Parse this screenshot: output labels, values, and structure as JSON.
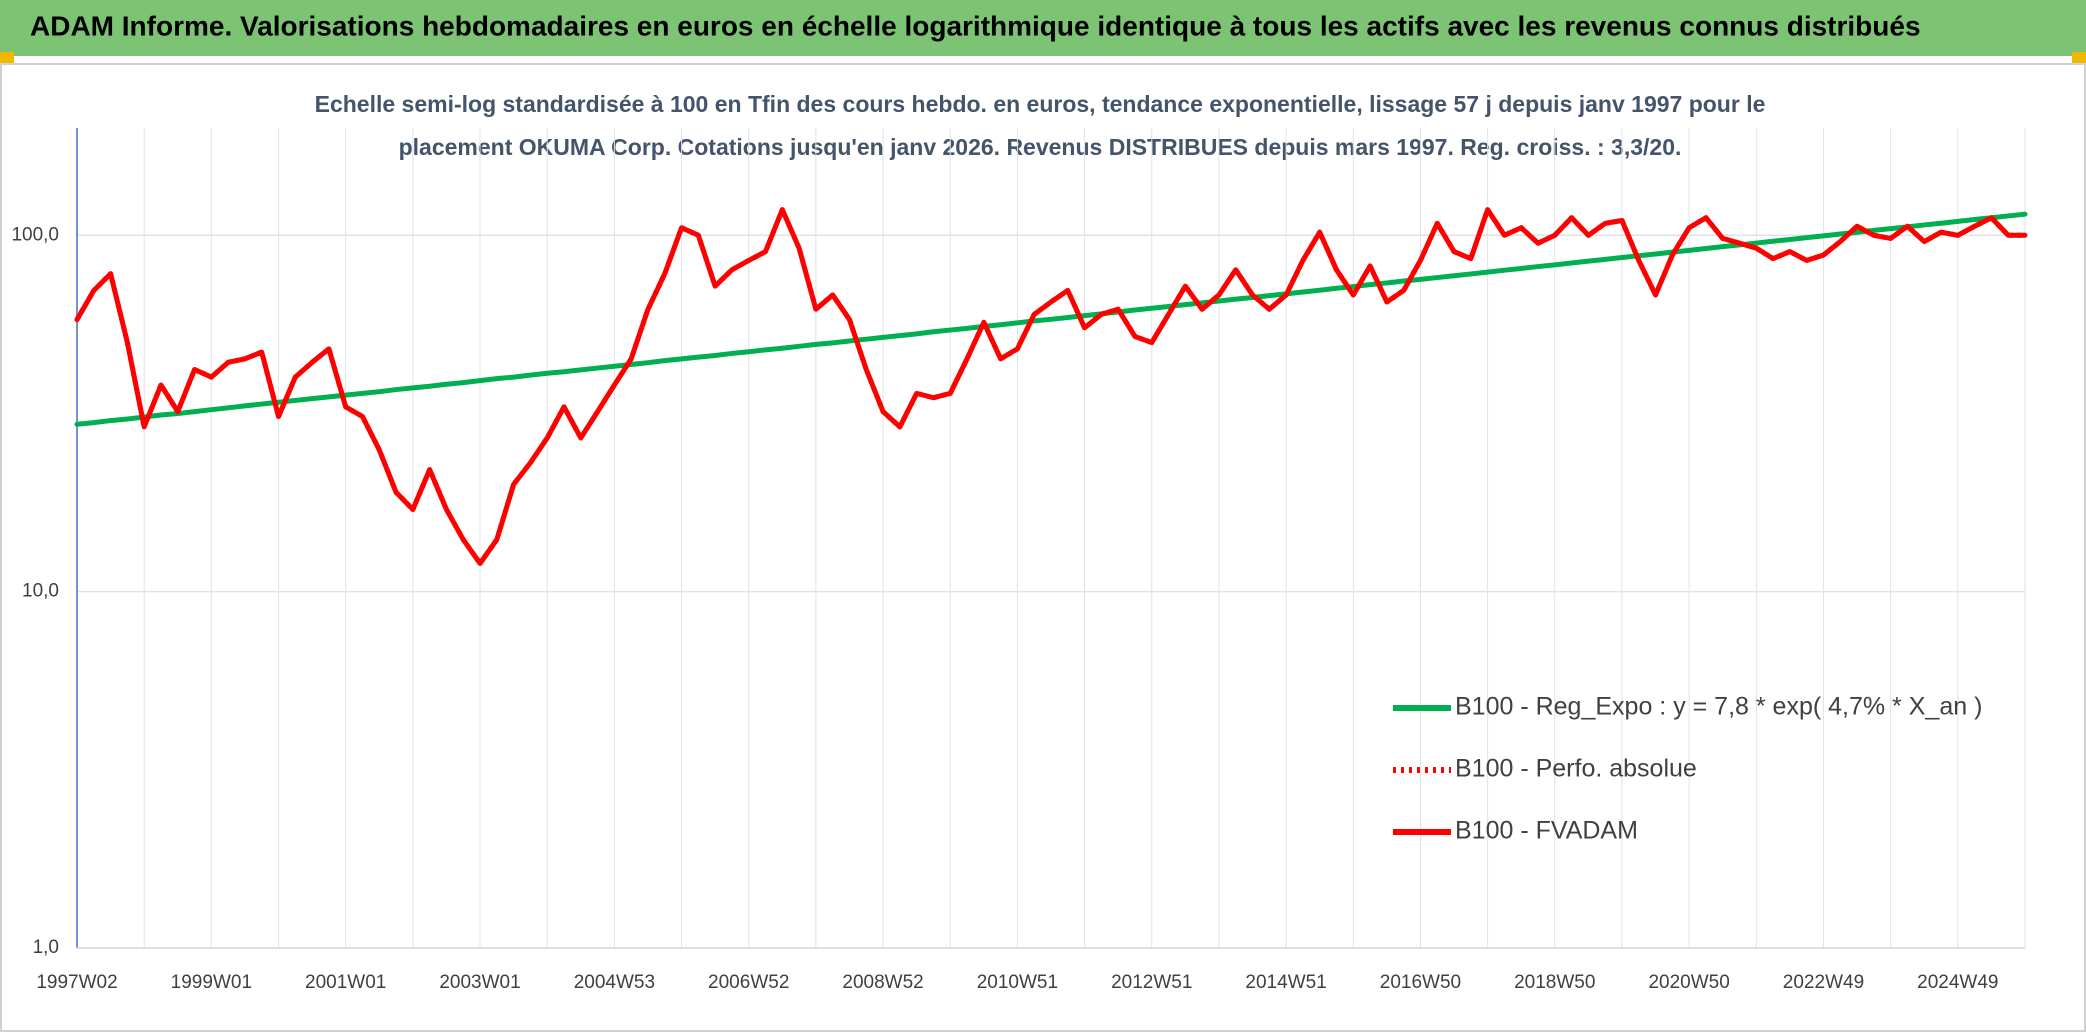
{
  "chart_data": {
    "type": "line",
    "title": "ADAM Informe. Valorisations hebdomadaires en euros en échelle logarithmique identique à tous les actifs avec les revenus connus distribués",
    "subtitle": [
      "Echelle semi-log standardisée à 100 en Tfin des cours hebdo. en euros, tendance exponentielle, lissage 57 j depuis janv 1997 pour le",
      "placement OKUMA Corp. Cotations jusqu'en janv 2026. Revenus DISTRIBUES depuis mars 1997. Reg. croiss. : 3,3/20."
    ],
    "categories": [
      "1997W02",
      null,
      null,
      null,
      null,
      null,
      null,
      null,
      "1999W01",
      null,
      null,
      null,
      null,
      null,
      null,
      null,
      "2001W01",
      null,
      null,
      null,
      null,
      null,
      null,
      null,
      "2003W01",
      null,
      null,
      null,
      null,
      null,
      null,
      null,
      "2004W53",
      null,
      null,
      null,
      null,
      null,
      null,
      null,
      "2006W52",
      null,
      null,
      null,
      null,
      null,
      null,
      null,
      "2008W52",
      null,
      null,
      null,
      null,
      null,
      null,
      null,
      "2010W51",
      null,
      null,
      null,
      null,
      null,
      null,
      null,
      "2012W51",
      null,
      null,
      null,
      null,
      null,
      null,
      null,
      "2014W51",
      null,
      null,
      null,
      null,
      null,
      null,
      null,
      "2016W50",
      null,
      null,
      null,
      null,
      null,
      null,
      null,
      "2018W50",
      null,
      null,
      null,
      null,
      null,
      null,
      null,
      "2020W50",
      null,
      null,
      null,
      null,
      null,
      null,
      null,
      "2022W49",
      null,
      null,
      null,
      null,
      null,
      null,
      null,
      "2024W49",
      null,
      null,
      null,
      null
    ],
    "series": [
      {
        "name": "B100 - Reg_Expo : y = 7,8 * exp( 4,7% *  X_an )",
        "color": "#00b050",
        "line_style": "solid",
        "values": [
          29.5,
          29.8,
          30.2,
          30.5,
          30.9,
          31.3,
          31.6,
          32.0,
          32.4,
          32.8,
          33.2,
          33.6,
          34.0,
          34.4,
          34.8,
          35.2,
          35.6,
          36.0,
          36.4,
          36.9,
          37.3,
          37.7,
          38.2,
          38.6,
          39.1,
          39.6,
          40.0,
          40.5,
          41.0,
          41.4,
          41.9,
          42.4,
          42.9,
          43.4,
          43.9,
          44.5,
          45.0,
          45.5,
          46.0,
          46.6,
          47.1,
          47.7,
          48.2,
          48.8,
          49.4,
          49.9,
          50.5,
          51.1,
          51.7,
          52.3,
          52.9,
          53.6,
          54.2,
          54.8,
          55.5,
          56.1,
          56.8,
          57.5,
          58.1,
          58.8,
          59.5,
          60.2,
          60.9,
          61.7,
          62.4,
          63.1,
          63.9,
          64.6,
          65.4,
          66.2,
          66.9,
          67.7,
          68.5,
          69.3,
          70.1,
          71.0,
          71.8,
          72.7,
          73.5,
          74.4,
          75.2,
          76.1,
          77.0,
          77.9,
          78.8,
          79.8,
          80.7,
          81.7,
          82.6,
          83.6,
          84.6,
          85.6,
          86.6,
          87.6,
          88.6,
          89.7,
          90.7,
          91.8,
          92.9,
          94.0,
          95.1,
          96.2,
          97.3,
          98.5,
          99.6,
          100.8,
          102.0,
          103.2,
          104.4,
          105.6,
          106.9,
          108.1,
          109.4,
          110.7,
          112.0,
          113.3,
          114.6
        ]
      },
      {
        "name": "B100 - Perfo. absolue",
        "color": "#ff0000",
        "line_style": "dotted",
        "values": [
          58,
          70,
          78,
          50,
          29,
          38,
          32,
          42,
          40,
          44,
          45,
          47,
          31,
          40,
          44,
          48,
          33,
          31,
          25,
          19,
          17,
          22,
          17,
          14,
          12,
          14,
          20,
          23,
          27,
          33,
          27,
          32,
          38,
          45,
          62,
          78,
          105,
          100,
          72,
          80,
          85,
          90,
          118,
          92,
          62,
          68,
          58,
          42,
          32,
          29,
          36,
          35,
          36,
          45,
          57,
          45,
          48,
          60,
          65,
          70,
          55,
          60,
          62,
          52,
          50,
          60,
          72,
          62,
          68,
          80,
          68,
          62,
          68,
          85,
          102,
          80,
          68,
          82,
          65,
          70,
          85,
          108,
          90,
          86,
          118,
          100,
          105,
          95,
          100,
          112,
          100,
          108,
          110,
          85,
          68,
          88,
          105,
          112,
          98,
          95,
          92,
          86,
          90,
          85,
          88,
          96,
          106,
          100,
          98,
          106,
          96,
          102,
          100,
          106,
          112,
          100,
          100
        ]
      },
      {
        "name": "B100 - FVADAM",
        "color": "#ff0000",
        "line_style": "solid",
        "values": [
          58,
          70,
          78,
          50,
          29,
          38,
          32,
          42,
          40,
          44,
          45,
          47,
          31,
          40,
          44,
          48,
          33,
          31,
          25,
          19,
          17,
          22,
          17,
          14,
          12,
          14,
          20,
          23,
          27,
          33,
          27,
          32,
          38,
          45,
          62,
          78,
          105,
          100,
          72,
          80,
          85,
          90,
          118,
          92,
          62,
          68,
          58,
          42,
          32,
          29,
          36,
          35,
          36,
          45,
          57,
          45,
          48,
          60,
          65,
          70,
          55,
          60,
          62,
          52,
          50,
          60,
          72,
          62,
          68,
          80,
          68,
          62,
          68,
          85,
          102,
          80,
          68,
          82,
          65,
          70,
          85,
          108,
          90,
          86,
          118,
          100,
          105,
          95,
          100,
          112,
          100,
          108,
          110,
          85,
          68,
          88,
          105,
          112,
          98,
          95,
          92,
          86,
          90,
          85,
          88,
          96,
          106,
          100,
          98,
          106,
          96,
          102,
          100,
          106,
          112,
          100,
          100
        ]
      }
    ],
    "log_scale": true,
    "ylim": [
      1,
      200
    ],
    "yticks": [
      {
        "value": 1,
        "label": "1,0"
      },
      {
        "value": 10,
        "label": "10,0"
      },
      {
        "value": 100,
        "label": "100,0"
      }
    ],
    "grid": true,
    "legend": "lower-right"
  }
}
